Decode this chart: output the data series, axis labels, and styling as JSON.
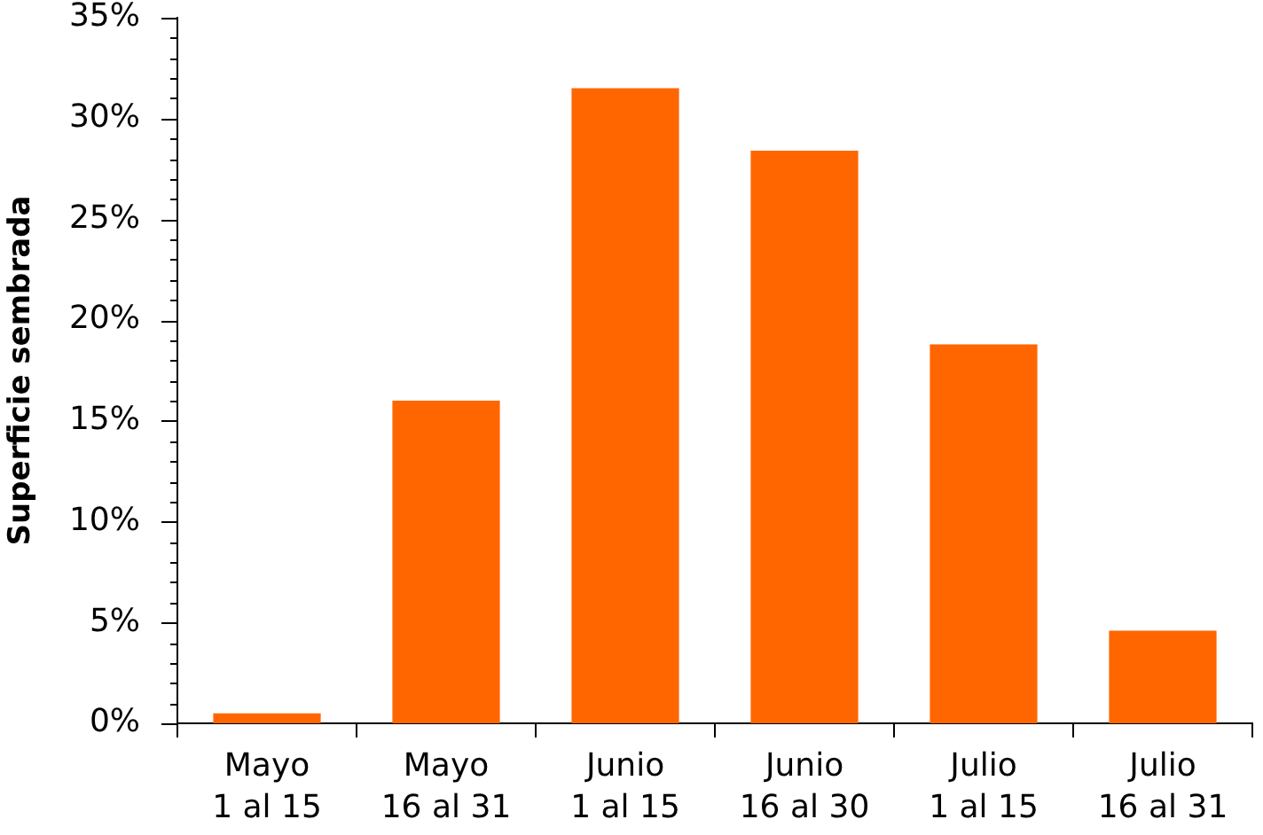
{
  "chart_data": {
    "type": "bar",
    "ylabel": "Superficie sembrada",
    "categories": [
      "Mayo\n1 al 15",
      "Mayo\n16 al 31",
      "Junio\n1 al 15",
      "Junio\n16 al 30",
      "Julio\n1 al 15",
      "Julio\n16 al 31"
    ],
    "values": [
      0.5,
      16.0,
      31.5,
      28.4,
      18.8,
      4.6
    ],
    "color": "#ff6600",
    "ylim": [
      0,
      35
    ],
    "yticks": [
      {
        "value": 0,
        "label": "0%"
      },
      {
        "value": 1,
        "label": null
      },
      {
        "value": 2,
        "label": null
      },
      {
        "value": 3,
        "label": null
      },
      {
        "value": 4,
        "label": null
      },
      {
        "value": 5,
        "label": "5%"
      },
      {
        "value": 6,
        "label": null
      },
      {
        "value": 7,
        "label": null
      },
      {
        "value": 8,
        "label": null
      },
      {
        "value": 9,
        "label": null
      },
      {
        "value": 10,
        "label": "10%"
      },
      {
        "value": 11,
        "label": null
      },
      {
        "value": 12,
        "label": null
      },
      {
        "value": 13,
        "label": null
      },
      {
        "value": 14,
        "label": null
      },
      {
        "value": 15,
        "label": "15%"
      },
      {
        "value": 16,
        "label": null
      },
      {
        "value": 17,
        "label": null
      },
      {
        "value": 18,
        "label": null
      },
      {
        "value": 19,
        "label": null
      },
      {
        "value": 20,
        "label": "20%"
      },
      {
        "value": 21,
        "label": null
      },
      {
        "value": 22,
        "label": null
      },
      {
        "value": 23,
        "label": null
      },
      {
        "value": 24,
        "label": null
      },
      {
        "value": 25,
        "label": "25%"
      },
      {
        "value": 26,
        "label": null
      },
      {
        "value": 27,
        "label": null
      },
      {
        "value": 28,
        "label": null
      },
      {
        "value": 29,
        "label": null
      },
      {
        "value": 30,
        "label": "30%"
      },
      {
        "value": 31,
        "label": null
      },
      {
        "value": 32,
        "label": null
      },
      {
        "value": 33,
        "label": null
      },
      {
        "value": 34,
        "label": null
      },
      {
        "value": 35,
        "label": "35%"
      }
    ],
    "grid": false,
    "legend": false
  }
}
